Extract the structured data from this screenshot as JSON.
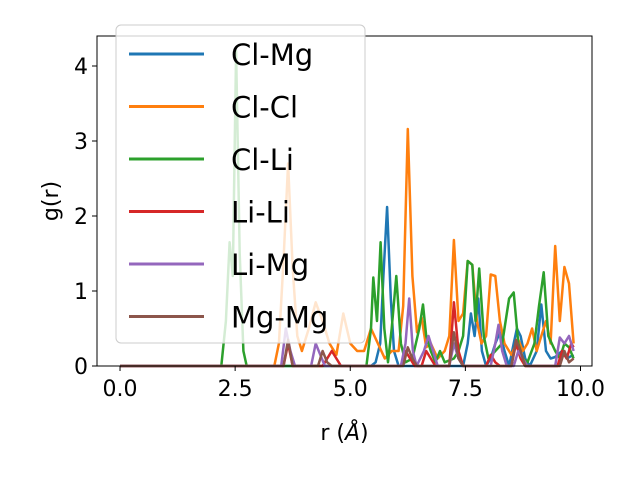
{
  "chart_data": {
    "type": "line",
    "xlabel": "r (",
    "xlabel_unit": "Å",
    "xlabel_close": ")",
    "ylabel": "g(r)",
    "xlim": [
      -0.5,
      10.25
    ],
    "ylim": [
      0,
      4.4
    ],
    "xticks": [
      0.0,
      2.5,
      5.0,
      7.5,
      10.0
    ],
    "xtick_labels": [
      "0.0",
      "2.5",
      "5.0",
      "7.5",
      "10.0"
    ],
    "yticks": [
      0,
      1,
      2,
      3,
      4
    ],
    "ytick_labels": [
      "0",
      "1",
      "2",
      "3",
      "4"
    ],
    "grid": false,
    "legend_position": "top-left",
    "series": [
      {
        "name": "Cl-Mg",
        "color": "#1f77b4",
        "points": [
          [
            0,
            0
          ],
          [
            5.45,
            0
          ],
          [
            5.55,
            0.05
          ],
          [
            5.65,
            0.3
          ],
          [
            5.72,
            1.2
          ],
          [
            5.8,
            2.12
          ],
          [
            5.88,
            0.9
          ],
          [
            5.95,
            0.2
          ],
          [
            6.05,
            0
          ],
          [
            7.45,
            0
          ],
          [
            7.55,
            0.3
          ],
          [
            7.62,
            0.7
          ],
          [
            7.7,
            0.4
          ],
          [
            7.78,
            0.9
          ],
          [
            7.86,
            0.2
          ],
          [
            7.95,
            0
          ],
          [
            8.05,
            0.1
          ],
          [
            8.15,
            0.3
          ],
          [
            8.25,
            0.45
          ],
          [
            8.35,
            0.2
          ],
          [
            8.45,
            0
          ],
          [
            8.55,
            0.3
          ],
          [
            8.62,
            0.5
          ],
          [
            8.7,
            0.4
          ],
          [
            8.8,
            0.1
          ],
          [
            8.9,
            0
          ],
          [
            9.05,
            0.2
          ],
          [
            9.15,
            0.82
          ],
          [
            9.25,
            0.2
          ],
          [
            9.35,
            0.1
          ],
          [
            9.45,
            0.12
          ],
          [
            9.6,
            0.2
          ],
          [
            9.7,
            0.1
          ],
          [
            9.85,
            0.15
          ]
        ]
      },
      {
        "name": "Cl-Cl",
        "color": "#ff7f0e",
        "points": [
          [
            0,
            0
          ],
          [
            3.35,
            0
          ],
          [
            3.45,
            0.3
          ],
          [
            3.55,
            1.4
          ],
          [
            3.65,
            2.7
          ],
          [
            3.75,
            1.3
          ],
          [
            3.85,
            0.4
          ],
          [
            3.95,
            0.2
          ],
          [
            4.1,
            0.5
          ],
          [
            4.25,
            0.85
          ],
          [
            4.4,
            0.6
          ],
          [
            4.55,
            0.3
          ],
          [
            4.7,
            0.15
          ],
          [
            4.85,
            0.7
          ],
          [
            5.0,
            0.3
          ],
          [
            5.15,
            0.2
          ],
          [
            5.3,
            0.2
          ],
          [
            5.45,
            0.5
          ],
          [
            5.6,
            0.3
          ],
          [
            5.75,
            0.1
          ],
          [
            5.9,
            0.2
          ],
          [
            6.05,
            0.2
          ],
          [
            6.15,
            0.8
          ],
          [
            6.25,
            3.16
          ],
          [
            6.35,
            1.2
          ],
          [
            6.45,
            0.45
          ],
          [
            6.55,
            0.65
          ],
          [
            6.65,
            0.25
          ],
          [
            6.75,
            0.3
          ],
          [
            6.9,
            0.1
          ],
          [
            7.05,
            0.2
          ],
          [
            7.15,
            0.4
          ],
          [
            7.25,
            1.68
          ],
          [
            7.35,
            0.6
          ],
          [
            7.45,
            0.7
          ],
          [
            7.55,
            1.4
          ],
          [
            7.65,
            1.35
          ],
          [
            7.75,
            0.6
          ],
          [
            7.85,
            0.3
          ],
          [
            7.95,
            0.4
          ],
          [
            8.05,
            1.22
          ],
          [
            8.15,
            1.2
          ],
          [
            8.25,
            0.6
          ],
          [
            8.35,
            0.3
          ],
          [
            8.5,
            0.15
          ],
          [
            8.65,
            0.35
          ],
          [
            8.75,
            0.2
          ],
          [
            8.85,
            0.3
          ],
          [
            8.95,
            0.5
          ],
          [
            9.05,
            0.2
          ],
          [
            9.15,
            0.4
          ],
          [
            9.25,
            0.6
          ],
          [
            9.35,
            0.3
          ],
          [
            9.45,
            1.6
          ],
          [
            9.55,
            0.6
          ],
          [
            9.65,
            1.32
          ],
          [
            9.75,
            1.1
          ],
          [
            9.85,
            0.3
          ]
        ]
      },
      {
        "name": "Cl-Li",
        "color": "#2ca02c",
        "points": [
          [
            0,
            0
          ],
          [
            2.2,
            0
          ],
          [
            2.3,
            0.6
          ],
          [
            2.38,
            1.65
          ],
          [
            2.45,
            1.2
          ],
          [
            2.52,
            4.2
          ],
          [
            2.6,
            1.5
          ],
          [
            2.68,
            0.2
          ],
          [
            2.75,
            0
          ],
          [
            5.35,
            0
          ],
          [
            5.45,
            0.5
          ],
          [
            5.5,
            1.18
          ],
          [
            5.58,
            0.6
          ],
          [
            5.66,
            1.65
          ],
          [
            5.74,
            0.5
          ],
          [
            5.82,
            0.05
          ],
          [
            5.9,
            0.5
          ],
          [
            6.0,
            1.2
          ],
          [
            6.1,
            0.3
          ],
          [
            6.2,
            0.05
          ],
          [
            6.35,
            0.1
          ],
          [
            6.5,
            0.5
          ],
          [
            6.58,
            0.82
          ],
          [
            6.65,
            0.4
          ],
          [
            6.75,
            0.2
          ],
          [
            6.85,
            0.05
          ],
          [
            6.95,
            0.2
          ],
          [
            7.05,
            0.05
          ],
          [
            7.25,
            0.1
          ],
          [
            7.35,
            0.2
          ],
          [
            7.45,
            0.4
          ],
          [
            7.55,
            1.4
          ],
          [
            7.65,
            1.35
          ],
          [
            7.72,
            0.6
          ],
          [
            7.8,
            1.3
          ],
          [
            7.9,
            0.4
          ],
          [
            8.0,
            0.1
          ],
          [
            8.15,
            0.2
          ],
          [
            8.3,
            0.3
          ],
          [
            8.45,
            0.9
          ],
          [
            8.55,
            0.98
          ],
          [
            8.65,
            0.3
          ],
          [
            8.75,
            0.1
          ],
          [
            8.85,
            0.05
          ],
          [
            9.0,
            0.3
          ],
          [
            9.1,
            0.8
          ],
          [
            9.2,
            1.25
          ],
          [
            9.3,
            0.4
          ],
          [
            9.45,
            0.2
          ],
          [
            9.55,
            0.1
          ],
          [
            9.65,
            0.3
          ],
          [
            9.75,
            0.25
          ],
          [
            9.85,
            0.1
          ]
        ]
      },
      {
        "name": "Li-Li",
        "color": "#d62728",
        "points": [
          [
            0,
            0
          ],
          [
            3.55,
            0
          ],
          [
            3.65,
            0.3
          ],
          [
            3.75,
            0
          ],
          [
            4.4,
            0
          ],
          [
            4.5,
            0.1
          ],
          [
            4.6,
            0.2
          ],
          [
            4.7,
            0.1
          ],
          [
            4.8,
            0
          ],
          [
            6.1,
            0
          ],
          [
            6.2,
            0.2
          ],
          [
            6.3,
            0.1
          ],
          [
            6.4,
            0
          ],
          [
            6.55,
            0
          ],
          [
            6.65,
            0.2
          ],
          [
            6.75,
            0.1
          ],
          [
            6.85,
            0
          ],
          [
            7.15,
            0
          ],
          [
            7.25,
            0.85
          ],
          [
            7.35,
            0.2
          ],
          [
            7.45,
            0
          ],
          [
            7.95,
            0
          ],
          [
            8.05,
            0.15
          ],
          [
            8.15,
            0.05
          ],
          [
            8.25,
            0
          ],
          [
            8.5,
            0
          ],
          [
            8.6,
            0.3
          ],
          [
            8.7,
            0.1
          ],
          [
            8.8,
            0
          ],
          [
            9.5,
            0
          ],
          [
            9.6,
            0.2
          ],
          [
            9.7,
            0.1
          ],
          [
            9.8,
            0.3
          ],
          [
            9.85,
            0.25
          ]
        ]
      },
      {
        "name": "Li-Mg",
        "color": "#9467bd",
        "points": [
          [
            0,
            0
          ],
          [
            3.5,
            0
          ],
          [
            3.6,
            0.5
          ],
          [
            3.7,
            0.2
          ],
          [
            3.8,
            0
          ],
          [
            4.15,
            0
          ],
          [
            4.25,
            0.3
          ],
          [
            4.35,
            0.15
          ],
          [
            4.45,
            0
          ],
          [
            6.1,
            0
          ],
          [
            6.2,
            0.3
          ],
          [
            6.28,
            0.9
          ],
          [
            6.36,
            0.2
          ],
          [
            6.44,
            0
          ],
          [
            6.6,
            0.2
          ],
          [
            6.7,
            0.4
          ],
          [
            6.8,
            0.2
          ],
          [
            6.9,
            0
          ],
          [
            7.15,
            0
          ],
          [
            7.25,
            0.3
          ],
          [
            7.35,
            0.1
          ],
          [
            7.45,
            0
          ],
          [
            8.05,
            0
          ],
          [
            8.15,
            0.3
          ],
          [
            8.22,
            0.55
          ],
          [
            8.3,
            0.2
          ],
          [
            8.4,
            0
          ],
          [
            8.55,
            0
          ],
          [
            8.65,
            0.2
          ],
          [
            8.75,
            0.1
          ],
          [
            8.85,
            0
          ],
          [
            9.45,
            0
          ],
          [
            9.55,
            0.38
          ],
          [
            9.65,
            0.3
          ],
          [
            9.75,
            0.4
          ],
          [
            9.85,
            0.2
          ]
        ]
      },
      {
        "name": "Mg-Mg",
        "color": "#8c564b",
        "points": [
          [
            0,
            0
          ],
          [
            3.55,
            0
          ],
          [
            3.65,
            0.35
          ],
          [
            3.75,
            0
          ],
          [
            4.3,
            0
          ],
          [
            4.4,
            0.2
          ],
          [
            4.5,
            0.05
          ],
          [
            4.6,
            0
          ],
          [
            6.15,
            0
          ],
          [
            6.25,
            0.25
          ],
          [
            6.35,
            0.1
          ],
          [
            6.45,
            0
          ],
          [
            7.15,
            0
          ],
          [
            7.25,
            0.45
          ],
          [
            7.35,
            0.1
          ],
          [
            7.45,
            0
          ],
          [
            8.5,
            0
          ],
          [
            8.6,
            0.35
          ],
          [
            8.7,
            0.2
          ],
          [
            8.8,
            0
          ],
          [
            9.55,
            0
          ],
          [
            9.65,
            0.2
          ],
          [
            9.75,
            0.05
          ],
          [
            9.85,
            0.1
          ]
        ]
      }
    ]
  }
}
